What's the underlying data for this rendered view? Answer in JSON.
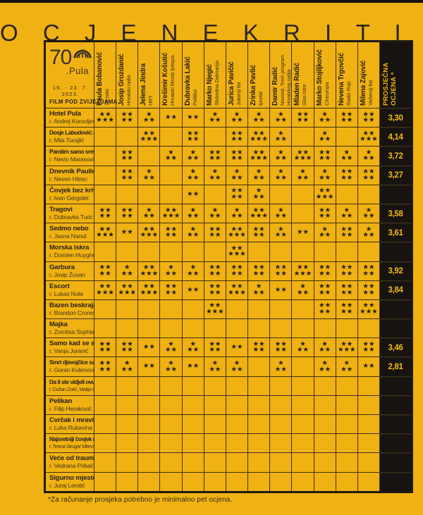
{
  "title": "O C J E N E   K R I T I K E",
  "logo": {
    "number": "70",
    "city": ".Pula",
    "dates": "15. - 23. 7. 2023.",
    "tagline": "FILM POD ZVIJEZDAMA",
    "arena_icon": "pula-arena-icon"
  },
  "avg_header": {
    "line1": "PROSJEČNA",
    "line2": "OCJENA *"
  },
  "critics": [
    {
      "name": "Paula Bobanović",
      "outlet": "24 sata"
    },
    {
      "name": "Josip Grozdanić",
      "outlet": "Hrvatski radio"
    },
    {
      "name": "Jelena Jindra",
      "outlet": "HRT"
    },
    {
      "name": "Krešimir Košutić",
      "outlet": "Hrvatski filmski ljetopis"
    },
    {
      "name": "Dubravka Lakić",
      "outlet": "Politika"
    },
    {
      "name": "Marko Njegić",
      "outlet": "Slobodna Dalmacija"
    },
    {
      "name": "Jurica Pavičić",
      "outlet": "Jutarnji list"
    },
    {
      "name": "Zrinka Pavlić",
      "outlet": "tportal"
    },
    {
      "name": "Damir Radić",
      "outlet": "Novosti, Treći program Hrvatskog radija"
    },
    {
      "name": "Mladen Radić",
      "outlet": "Glas Istre"
    },
    {
      "name": "Marko Stojiljković",
      "outlet": "Cineuropa"
    },
    {
      "name": "Nevena Trgovčić",
      "outlet": "Radio Rojc"
    },
    {
      "name": "Milena Zajović",
      "outlet": "Večernji list"
    }
  ],
  "films": [
    {
      "title": "Hotel Pula",
      "director": "r. Andrej Korovljev",
      "ratings": [
        5,
        4,
        3,
        2,
        2,
        3,
        3,
        3,
        3,
        4,
        3,
        4,
        4
      ],
      "average": "3,30"
    },
    {
      "title": "Dosje Labudović: Nesvrstani",
      "director": "r. Mila Turajlić",
      "ratings": [
        0,
        0,
        5,
        0,
        4,
        0,
        4,
        5,
        3,
        0,
        3,
        0,
        5
      ],
      "average": "4,14"
    },
    {
      "title": "Pamtim samo sretne dane",
      "director": "r. Nevio Marasović",
      "ratings": [
        0,
        4,
        0,
        3,
        3,
        4,
        4,
        5,
        3,
        5,
        4,
        3,
        3
      ],
      "average": "3,72"
    },
    {
      "title": "Dnevnik Pauline P.",
      "director": "r. Neven Hitrec",
      "ratings": [
        0,
        4,
        3,
        0,
        3,
        3,
        3,
        3,
        3,
        3,
        3,
        4,
        4
      ],
      "average": "3,27"
    },
    {
      "title": "Čovjek bez krivnje",
      "director": "r. Ivan Gergolet",
      "ratings": [
        0,
        0,
        0,
        0,
        2,
        0,
        4,
        3,
        0,
        0,
        5,
        0,
        0
      ],
      "average": ""
    },
    {
      "title": "Tragovi",
      "director": "r. Dubravka Turić",
      "ratings": [
        4,
        4,
        3,
        5,
        3,
        3,
        3,
        5,
        3,
        0,
        4,
        3,
        3
      ],
      "average": "3,58"
    },
    {
      "title": "Sedmo nebo",
      "director": "r. Jasna Nanut",
      "ratings": [
        5,
        2,
        5,
        4,
        3,
        4,
        5,
        4,
        3,
        2,
        3,
        4,
        3
      ],
      "average": "3,61"
    },
    {
      "title": "Morska iskra",
      "director": "r. Domien Huyghe",
      "ratings": [
        0,
        0,
        0,
        0,
        0,
        0,
        5,
        0,
        0,
        0,
        0,
        0,
        0
      ],
      "average": ""
    },
    {
      "title": "Garbura",
      "director": "r. Josip Žuvan",
      "ratings": [
        4,
        3,
        5,
        3,
        3,
        4,
        4,
        4,
        4,
        5,
        4,
        4,
        4
      ],
      "average": "3,92"
    },
    {
      "title": "Escort",
      "director": "r. Lukas Nola",
      "ratings": [
        5,
        5,
        5,
        4,
        2,
        4,
        5,
        3,
        2,
        3,
        4,
        4,
        4
      ],
      "average": "3,84"
    },
    {
      "title": "Bazen beskraja",
      "director": "r. Brandon Cronenberg",
      "ratings": [
        0,
        0,
        0,
        0,
        0,
        5,
        0,
        0,
        0,
        0,
        4,
        4,
        5
      ],
      "average": ""
    },
    {
      "title": "Majka",
      "director": "r. Zornitsa Sophia",
      "ratings": [
        0,
        0,
        0,
        0,
        0,
        0,
        0,
        0,
        0,
        0,
        0,
        0,
        0
      ],
      "average": ""
    },
    {
      "title": "Samo kad se smijem",
      "director": "r. Vanja Juranić",
      "ratings": [
        4,
        4,
        2,
        3,
        3,
        4,
        2,
        4,
        4,
        3,
        3,
        5,
        4
      ],
      "average": "3,46"
    },
    {
      "title": "Smrt djevojčice sa žigicama",
      "director": "r. Goran Kulenović",
      "ratings": [
        4,
        3,
        2,
        3,
        2,
        3,
        3,
        0,
        3,
        0,
        3,
        3,
        2
      ],
      "average": "2,81"
    },
    {
      "title": "Da li ste vidjeli ovu ženu?",
      "director": "r. Dušan Zorić, Matija Gluščević",
      "ratings": [
        0,
        0,
        0,
        0,
        0,
        0,
        0,
        0,
        0,
        0,
        0,
        0,
        0
      ],
      "average": ""
    },
    {
      "title": "Pelikan",
      "director": "r. Filip Heraković",
      "ratings": [
        0,
        0,
        0,
        0,
        0,
        0,
        0,
        0,
        0,
        0,
        0,
        0,
        0
      ],
      "average": ""
    },
    {
      "title": "Cvrčak i mravica",
      "director": "r. Luka Rukavina",
      "ratings": [
        0,
        0,
        0,
        0,
        0,
        0,
        0,
        0,
        0,
        0,
        0,
        0,
        0
      ],
      "average": ""
    },
    {
      "title": "Najsretniji čovjek na svijetu",
      "director": "r. Teona Strugar Mitevska",
      "ratings": [
        0,
        0,
        0,
        0,
        0,
        0,
        0,
        0,
        0,
        0,
        0,
        0,
        0
      ],
      "average": ""
    },
    {
      "title": "Veće od traume",
      "director": "r. Vedrana Pribačić",
      "ratings": [
        0,
        0,
        0,
        0,
        0,
        0,
        0,
        0,
        0,
        0,
        0,
        0,
        0
      ],
      "average": ""
    },
    {
      "title": "Sigurno mjesto",
      "director": "r. Juraj Lerotić",
      "ratings": [
        0,
        0,
        0,
        0,
        0,
        0,
        0,
        0,
        0,
        0,
        0,
        0,
        0
      ],
      "average": ""
    }
  ],
  "star_glyph": "★",
  "footnote": "*Za računanje prosjeka potrebno je minimalno pet ocjena.",
  "colors": {
    "bg": "#F0B212",
    "ink": "#241F1B",
    "black_col": "#171310",
    "avg_text": "#F2BA16"
  }
}
